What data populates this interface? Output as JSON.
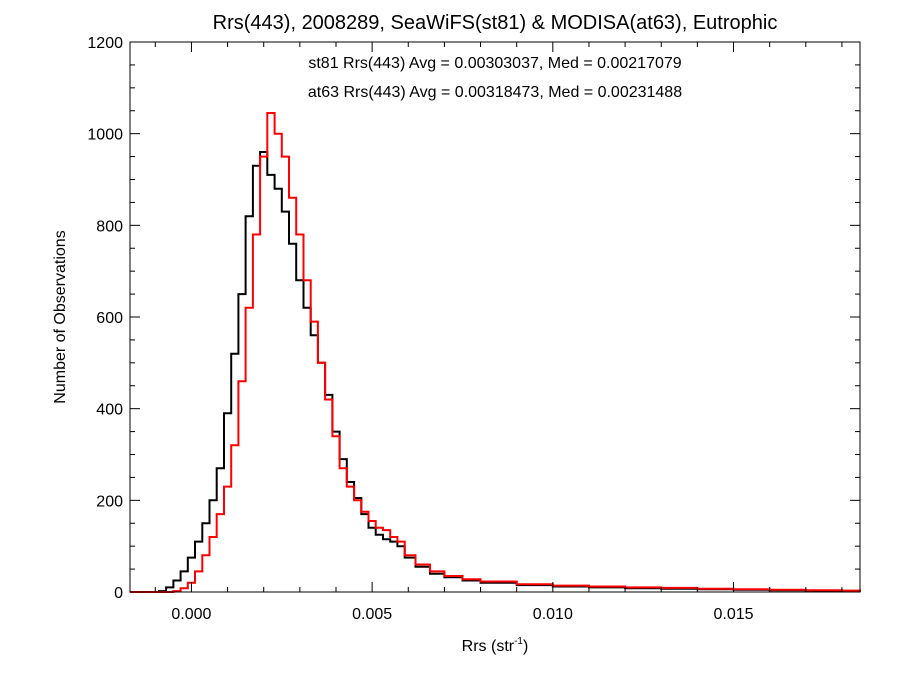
{
  "chart_data": {
    "type": "line",
    "style": "histogram-step",
    "title": "Rrs(443), 2008289, SeaWiFS(st81) & MODISA(at63), Eutrophic",
    "xlabel": "Rrs (str",
    "xlabel_sup": "-1",
    "xlabel_close": ")",
    "ylabel": "Number of Observations",
    "xlim": [
      -0.0017,
      0.0185
    ],
    "ylim": [
      0,
      1200
    ],
    "xticks": [
      {
        "value": 0.0,
        "label": "0.000"
      },
      {
        "value": 0.005,
        "label": "0.005"
      },
      {
        "value": 0.01,
        "label": "0.010"
      },
      {
        "value": 0.015,
        "label": "0.015"
      }
    ],
    "yticks": [
      {
        "value": 0,
        "label": "0"
      },
      {
        "value": 200,
        "label": "200"
      },
      {
        "value": 400,
        "label": "400"
      },
      {
        "value": 600,
        "label": "600"
      },
      {
        "value": 800,
        "label": "800"
      },
      {
        "value": 1000,
        "label": "1000"
      },
      {
        "value": 1200,
        "label": "1200"
      }
    ],
    "grid": false,
    "annotations": [
      {
        "text": "st81 Rrs(443) Avg = 0.00303037, Med = 0.00217079",
        "color": "#000000"
      },
      {
        "text": "at63 Rrs(443) Avg = 0.00318473, Med = 0.00231488",
        "color": "#ff0000"
      }
    ],
    "series": [
      {
        "color": "#000000",
        "points": [
          [
            -0.0017,
            0
          ],
          [
            -0.0009,
            2
          ],
          [
            -0.0007,
            10
          ],
          [
            -0.0005,
            25
          ],
          [
            -0.0003,
            45
          ],
          [
            -0.0001,
            75
          ],
          [
            0.0001,
            110
          ],
          [
            0.0003,
            150
          ],
          [
            0.0005,
            200
          ],
          [
            0.0007,
            270
          ],
          [
            0.0009,
            390
          ],
          [
            0.0011,
            520
          ],
          [
            0.0013,
            650
          ],
          [
            0.0015,
            820
          ],
          [
            0.0017,
            930
          ],
          [
            0.0019,
            960
          ],
          [
            0.0021,
            910
          ],
          [
            0.0023,
            880
          ],
          [
            0.0025,
            830
          ],
          [
            0.0027,
            760
          ],
          [
            0.0029,
            680
          ],
          [
            0.0031,
            620
          ],
          [
            0.0033,
            560
          ],
          [
            0.0035,
            500
          ],
          [
            0.0037,
            430
          ],
          [
            0.0039,
            350
          ],
          [
            0.0041,
            290
          ],
          [
            0.0043,
            240
          ],
          [
            0.0045,
            205
          ],
          [
            0.0047,
            170
          ],
          [
            0.0049,
            140
          ],
          [
            0.0051,
            125
          ],
          [
            0.0053,
            115
          ],
          [
            0.0055,
            110
          ],
          [
            0.0057,
            100
          ],
          [
            0.0059,
            75
          ],
          [
            0.0062,
            55
          ],
          [
            0.0066,
            40
          ],
          [
            0.007,
            32
          ],
          [
            0.0075,
            25
          ],
          [
            0.008,
            20
          ],
          [
            0.009,
            15
          ],
          [
            0.01,
            12
          ],
          [
            0.011,
            10
          ],
          [
            0.012,
            8
          ],
          [
            0.013,
            7
          ],
          [
            0.014,
            6
          ],
          [
            0.015,
            5
          ],
          [
            0.016,
            4
          ],
          [
            0.017,
            3
          ],
          [
            0.018,
            2
          ],
          [
            0.0185,
            1
          ]
        ]
      },
      {
        "color": "#ff0000",
        "points": [
          [
            -0.0017,
            0
          ],
          [
            -0.0005,
            2
          ],
          [
            -0.0003,
            8
          ],
          [
            -0.0001,
            20
          ],
          [
            0.0001,
            45
          ],
          [
            0.0003,
            80
          ],
          [
            0.0005,
            120
          ],
          [
            0.0007,
            170
          ],
          [
            0.0009,
            230
          ],
          [
            0.0011,
            320
          ],
          [
            0.0013,
            460
          ],
          [
            0.0015,
            620
          ],
          [
            0.0017,
            780
          ],
          [
            0.0019,
            950
          ],
          [
            0.0021,
            1045
          ],
          [
            0.0023,
            1000
          ],
          [
            0.0025,
            950
          ],
          [
            0.0027,
            860
          ],
          [
            0.0029,
            780
          ],
          [
            0.0031,
            680
          ],
          [
            0.0033,
            590
          ],
          [
            0.0035,
            500
          ],
          [
            0.0037,
            420
          ],
          [
            0.0039,
            340
          ],
          [
            0.0041,
            270
          ],
          [
            0.0043,
            230
          ],
          [
            0.0045,
            200
          ],
          [
            0.0047,
            175
          ],
          [
            0.0049,
            155
          ],
          [
            0.0051,
            140
          ],
          [
            0.0053,
            135
          ],
          [
            0.0055,
            120
          ],
          [
            0.0057,
            110
          ],
          [
            0.0059,
            80
          ],
          [
            0.0062,
            60
          ],
          [
            0.0066,
            45
          ],
          [
            0.007,
            35
          ],
          [
            0.0075,
            28
          ],
          [
            0.008,
            23
          ],
          [
            0.009,
            17
          ],
          [
            0.01,
            14
          ],
          [
            0.011,
            12
          ],
          [
            0.012,
            10
          ],
          [
            0.013,
            9
          ],
          [
            0.014,
            7
          ],
          [
            0.015,
            6
          ],
          [
            0.016,
            5
          ],
          [
            0.017,
            4
          ],
          [
            0.018,
            3
          ],
          [
            0.0185,
            2
          ]
        ]
      }
    ]
  }
}
